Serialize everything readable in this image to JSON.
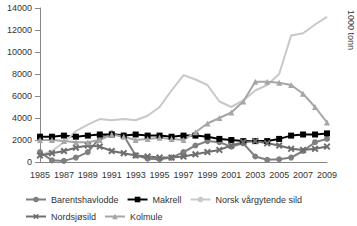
{
  "chart_data": {
    "type": "line",
    "y_label": "1000 tonn",
    "categories": [
      1985,
      null,
      1987,
      null,
      1989,
      null,
      1991,
      null,
      1993,
      null,
      1995,
      null,
      1997,
      null,
      1999,
      null,
      2001,
      null,
      2003,
      null,
      2005,
      null,
      2007,
      null,
      2009
    ],
    "series": [
      {
        "name": "Barentshavlodde",
        "color": "#7f7f7f",
        "marker": "circle",
        "values": [
          900,
          150,
          100,
          400,
          900,
          2200,
          2600,
          2400,
          600,
          300,
          250,
          400,
          900,
          1500,
          1900,
          1800,
          1400,
          1700,
          500,
          200,
          250,
          400,
          1000,
          1800,
          2100
        ]
      },
      {
        "name": "Makrell",
        "color": "#000000",
        "marker": "square",
        "values": [
          2300,
          2300,
          2400,
          2300,
          2400,
          2500,
          2500,
          2400,
          2500,
          2400,
          2400,
          2300,
          2400,
          2400,
          2300,
          2100,
          2000,
          1900,
          1900,
          1900,
          2100,
          2400,
          2500,
          2500,
          2600
        ]
      },
      {
        "name": "Norsk vårgytende sild",
        "color": "#c8c8c8",
        "marker": "none",
        "values": [
          600,
          1000,
          1800,
          2800,
          3400,
          3900,
          3800,
          3900,
          3800,
          4200,
          5000,
          6500,
          7900,
          7500,
          7000,
          5500,
          5000,
          5600,
          6500,
          7000,
          8000,
          11500,
          11700,
          12500,
          13200
        ]
      },
      {
        "name": "Nordsjøsild",
        "color": "#6e6e6e",
        "marker": "x",
        "values": [
          600,
          800,
          1000,
          1300,
          1500,
          1400,
          1000,
          800,
          600,
          500,
          400,
          400,
          500,
          700,
          900,
          1100,
          1500,
          1800,
          1900,
          1700,
          1500,
          1200,
          1100,
          1200,
          1400
        ]
      },
      {
        "name": "Kolmule",
        "color": "#a6a6a6",
        "marker": "triangle",
        "values": [
          2000,
          2000,
          1900,
          1800,
          1800,
          2000,
          2500,
          2300,
          2000,
          2100,
          2200,
          2100,
          2000,
          2700,
          3500,
          4000,
          4500,
          5500,
          7300,
          7300,
          7200,
          7000,
          6200,
          5000,
          3600
        ]
      }
    ],
    "ylim": [
      0,
      14000
    ],
    "yticks": [
      0,
      2000,
      4000,
      6000,
      8000,
      10000,
      12000,
      14000
    ],
    "grid": false,
    "legend": "bottom"
  }
}
